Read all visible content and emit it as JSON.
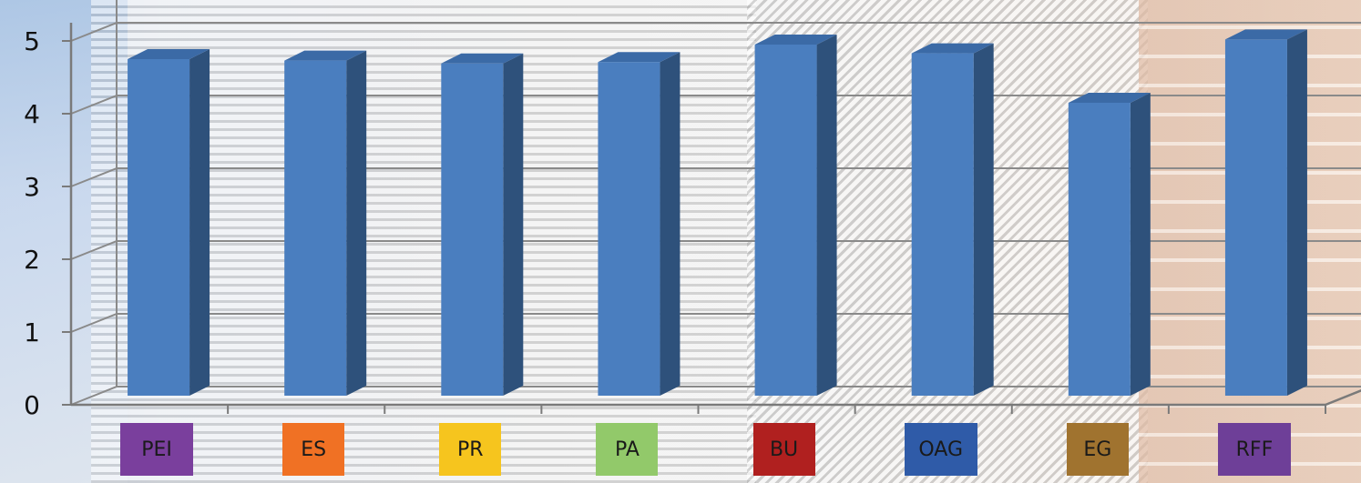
{
  "chart_data": {
    "type": "bar",
    "categories": [
      "PEI",
      "ES",
      "PR",
      "PA",
      "BU",
      "OAG",
      "EG",
      "RFF"
    ],
    "category_colors": [
      "#7a3f9d",
      "#f07124",
      "#f6c51e",
      "#92c96a",
      "#b0201f",
      "#2f5ba8",
      "#a0732f",
      "#6e3f98"
    ],
    "values": [
      4.6,
      4.58,
      4.54,
      4.56,
      4.8,
      4.68,
      4.0,
      4.87
    ],
    "ylim": [
      0,
      5
    ],
    "yticks": [
      "0",
      "1",
      "2",
      "3",
      "4",
      "5"
    ],
    "bar_color": "#4a7ebf",
    "bar_side_color": "#2e517b",
    "bar_top_color": "#3b6aa6",
    "grid": true,
    "title": "",
    "xlabel": "",
    "ylabel": ""
  }
}
